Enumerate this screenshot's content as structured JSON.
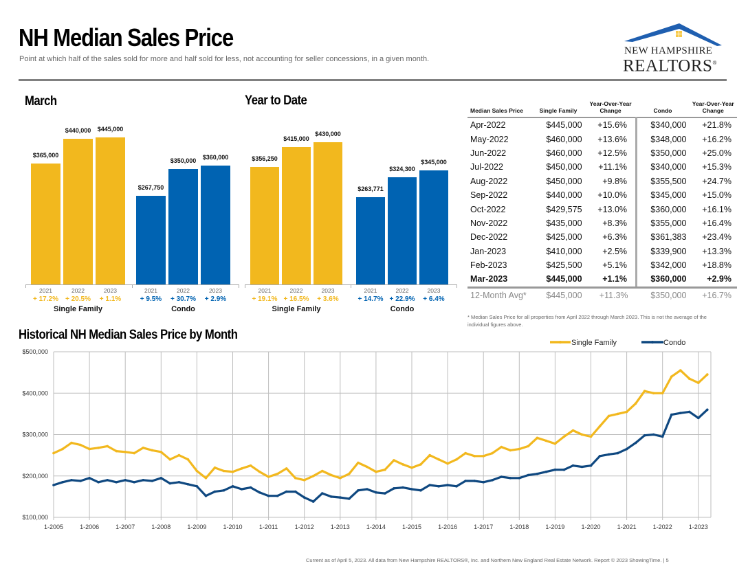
{
  "header": {
    "title": "NH Median Sales Price",
    "subtitle": "Point at which half of the sales sold for more and half sold for less, not accounting for seller concessions, in a given month.",
    "logo_line1": "NEW HAMPSHIRE",
    "logo_line2": "REALTORS",
    "logo_mark": "®"
  },
  "colors": {
    "single_family": "#F2B81E",
    "condo": "#0063B2",
    "condo_line": "#0F4880",
    "logo_blue": "#1F5FB0",
    "logo_window": "#F7C948"
  },
  "march": {
    "title": "March",
    "groups": [
      {
        "label": "Single Family",
        "type": "single_family",
        "bars": [
          {
            "year": "2021",
            "value": 365000,
            "label": "$365,000",
            "change": "+ 17.2%"
          },
          {
            "year": "2022",
            "value": 440000,
            "label": "$440,000",
            "change": "+ 20.5%"
          },
          {
            "year": "2023",
            "value": 445000,
            "label": "$445,000",
            "change": "+ 1.1%"
          }
        ]
      },
      {
        "label": "Condo",
        "type": "condo",
        "bars": [
          {
            "year": "2021",
            "value": 267750,
            "label": "$267,750",
            "change": "+ 9.5%"
          },
          {
            "year": "2022",
            "value": 350000,
            "label": "$350,000",
            "change": "+ 30.7%"
          },
          {
            "year": "2023",
            "value": 360000,
            "label": "$360,000",
            "change": "+ 2.9%"
          }
        ]
      }
    ]
  },
  "ytd": {
    "title": "Year to Date",
    "groups": [
      {
        "label": "Single Family",
        "type": "single_family",
        "bars": [
          {
            "year": "2021",
            "value": 356250,
            "label": "$356,250",
            "change": "+ 19.1%"
          },
          {
            "year": "2022",
            "value": 415000,
            "label": "$415,000",
            "change": "+ 16.5%"
          },
          {
            "year": "2023",
            "value": 430000,
            "label": "$430,000",
            "change": "+ 3.6%"
          }
        ]
      },
      {
        "label": "Condo",
        "type": "condo",
        "bars": [
          {
            "year": "2021",
            "value": 263771,
            "label": "$263,771",
            "change": "+ 14.7%"
          },
          {
            "year": "2022",
            "value": 324300,
            "label": "$324,300",
            "change": "+ 22.9%"
          },
          {
            "year": "2023",
            "value": 345000,
            "label": "$345,000",
            "change": "+ 6.4%"
          }
        ]
      }
    ]
  },
  "table": {
    "headers": [
      "Median Sales Price",
      "Single Family",
      "Year-Over-Year Change",
      "Condo",
      "Year-Over-Year Change"
    ],
    "rows": [
      [
        "Apr-2022",
        "$445,000",
        "+15.6%",
        "$340,000",
        "+21.8%"
      ],
      [
        "May-2022",
        "$460,000",
        "+13.6%",
        "$348,000",
        "+16.2%"
      ],
      [
        "Jun-2022",
        "$460,000",
        "+12.5%",
        "$350,000",
        "+25.0%"
      ],
      [
        "Jul-2022",
        "$450,000",
        "+11.1%",
        "$340,000",
        "+15.3%"
      ],
      [
        "Aug-2022",
        "$450,000",
        "+9.8%",
        "$355,500",
        "+24.7%"
      ],
      [
        "Sep-2022",
        "$440,000",
        "+10.0%",
        "$345,000",
        "+15.0%"
      ],
      [
        "Oct-2022",
        "$429,575",
        "+13.0%",
        "$360,000",
        "+16.1%"
      ],
      [
        "Nov-2022",
        "$435,000",
        "+8.3%",
        "$355,000",
        "+16.4%"
      ],
      [
        "Dec-2022",
        "$425,000",
        "+6.3%",
        "$361,383",
        "+23.4%"
      ],
      [
        "Jan-2023",
        "$410,000",
        "+2.5%",
        "$339,900",
        "+13.3%"
      ],
      [
        "Feb-2023",
        "$425,500",
        "+5.1%",
        "$342,000",
        "+18.8%"
      ],
      [
        "Mar-2023",
        "$445,000",
        "+1.1%",
        "$360,000",
        "+2.9%"
      ]
    ],
    "avg_row": [
      "12-Month Avg*",
      "$445,000",
      "+11.3%",
      "$350,000",
      "+16.7%"
    ],
    "footnote": "* Median Sales Price for all properties from April 2022 through March 2023. This is not the average of the individual figures above."
  },
  "footer": "Current as of April 5, 2023.  All data from New Hampshire REALTORS®, Inc. and Northern New England Real Estate Network. Report © 2023 ShowingTime.  |  5",
  "chart_data": [
    {
      "type": "bar",
      "title": "March",
      "categories": [
        "2021",
        "2022",
        "2023"
      ],
      "series": [
        {
          "name": "Single Family",
          "values": [
            365000,
            440000,
            445000
          ],
          "changes": [
            "+17.2%",
            "+20.5%",
            "+1.1%"
          ]
        },
        {
          "name": "Condo",
          "values": [
            267750,
            350000,
            360000
          ],
          "changes": [
            "+9.5%",
            "+30.7%",
            "+2.9%"
          ]
        }
      ]
    },
    {
      "type": "bar",
      "title": "Year to Date",
      "categories": [
        "2021",
        "2022",
        "2023"
      ],
      "series": [
        {
          "name": "Single Family",
          "values": [
            356250,
            415000,
            430000
          ],
          "changes": [
            "+19.1%",
            "+16.5%",
            "+3.6%"
          ]
        },
        {
          "name": "Condo",
          "values": [
            263771,
            324300,
            345000
          ],
          "changes": [
            "+14.7%",
            "+22.9%",
            "+6.4%"
          ]
        }
      ]
    },
    {
      "type": "line",
      "title": "Historical NH Median Sales Price by Month",
      "xlabel": "",
      "ylabel": "",
      "ylim": [
        100000,
        500000
      ],
      "yticks": [
        "$100,000",
        "$200,000",
        "$300,000",
        "$400,000",
        "$500,000"
      ],
      "ytick_values": [
        100000,
        200000,
        300000,
        400000,
        500000
      ],
      "xticks": [
        "1-2005",
        "1-2006",
        "1-2007",
        "1-2008",
        "1-2009",
        "1-2010",
        "1-2011",
        "1-2012",
        "1-2013",
        "1-2014",
        "1-2015",
        "1-2016",
        "1-2017",
        "1-2018",
        "1-2019",
        "1-2020",
        "1-2021",
        "1-2022",
        "1-2023"
      ],
      "x_start": "2005-01",
      "x_end": "2023-03",
      "x_step": "quarter",
      "grid": true,
      "legend": "top-right",
      "series": [
        {
          "name": "Single Family",
          "values": [
            255000,
            265000,
            280000,
            275000,
            265000,
            268000,
            272000,
            260000,
            258000,
            255000,
            268000,
            262000,
            258000,
            240000,
            250000,
            240000,
            212000,
            195000,
            220000,
            212000,
            210000,
            218000,
            225000,
            210000,
            198000,
            205000,
            218000,
            195000,
            190000,
            200000,
            212000,
            202000,
            195000,
            205000,
            232000,
            222000,
            210000,
            215000,
            238000,
            228000,
            220000,
            228000,
            250000,
            240000,
            230000,
            240000,
            255000,
            248000,
            248000,
            255000,
            270000,
            262000,
            265000,
            272000,
            292000,
            285000,
            278000,
            295000,
            310000,
            300000,
            295000,
            320000,
            345000,
            350000,
            355000,
            375000,
            405000,
            400000,
            400000,
            440000,
            455000,
            435000,
            425000,
            445000
          ]
        },
        {
          "name": "Condo",
          "values": [
            178000,
            185000,
            190000,
            188000,
            195000,
            185000,
            190000,
            185000,
            190000,
            185000,
            190000,
            188000,
            195000,
            182000,
            185000,
            180000,
            175000,
            152000,
            162000,
            165000,
            175000,
            168000,
            172000,
            160000,
            152000,
            152000,
            162000,
            162000,
            148000,
            138000,
            158000,
            150000,
            148000,
            145000,
            165000,
            168000,
            160000,
            158000,
            170000,
            172000,
            168000,
            165000,
            178000,
            175000,
            178000,
            175000,
            188000,
            188000,
            185000,
            190000,
            198000,
            195000,
            195000,
            202000,
            205000,
            210000,
            215000,
            215000,
            225000,
            222000,
            225000,
            248000,
            252000,
            255000,
            265000,
            280000,
            298000,
            300000,
            295000,
            348000,
            352000,
            355000,
            340000,
            360000
          ]
        }
      ]
    }
  ]
}
